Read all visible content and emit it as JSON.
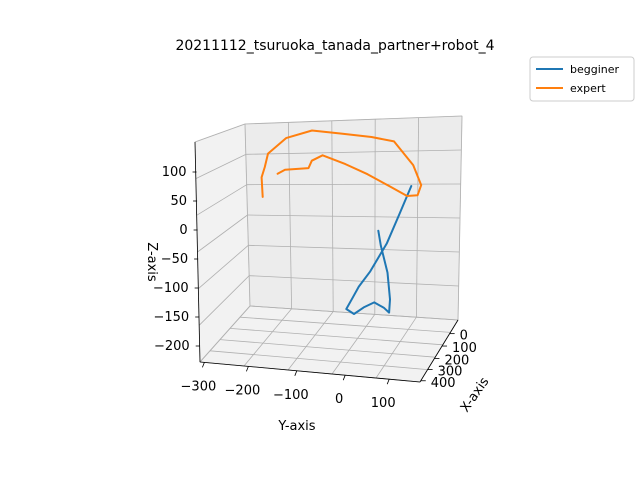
{
  "chart_data": {
    "type": "line",
    "projection": "3d",
    "title": "20211112_tsuruoka_tanada_partner+robot_4",
    "xlabel": "X-axis",
    "ylabel": "Y-axis",
    "zlabel": "Z-axis",
    "x_ticks": [
      "0",
      "100",
      "200",
      "300",
      "400"
    ],
    "y_ticks": [
      "−300",
      "−200",
      "−100",
      "0",
      "100"
    ],
    "z_ticks": [
      "100",
      "50",
      "0",
      "−50",
      "−100",
      "−150",
      "−200"
    ],
    "grid": true,
    "legend": "top-right outside",
    "series": [
      {
        "name": "begginer",
        "color": "#1f77b4",
        "points": [
          [
            0,
            50,
            -20
          ],
          [
            40,
            30,
            -60
          ],
          [
            80,
            10,
            -100
          ],
          [
            120,
            -20,
            -140
          ],
          [
            150,
            -40,
            -160
          ],
          [
            170,
            -50,
            -175
          ],
          [
            190,
            -60,
            -190
          ],
          [
            200,
            -40,
            -195
          ],
          [
            190,
            -20,
            -185
          ],
          [
            170,
            0,
            -180
          ],
          [
            160,
            20,
            -190
          ],
          [
            150,
            30,
            -200
          ],
          [
            140,
            30,
            -180
          ],
          [
            120,
            20,
            -140
          ],
          [
            100,
            0,
            -100
          ],
          [
            80,
            -10,
            -80
          ]
        ]
      },
      {
        "name": "expert",
        "color": "#ff7f0e",
        "points": [
          [
            0,
            -300,
            -55
          ],
          [
            10,
            -300,
            -20
          ],
          [
            20,
            -290,
            0
          ],
          [
            30,
            -280,
            25
          ],
          [
            60,
            -230,
            60
          ],
          [
            100,
            -160,
            85
          ],
          [
            150,
            -80,
            95
          ],
          [
            200,
            0,
            105
          ],
          [
            240,
            60,
            110
          ],
          [
            270,
            110,
            80
          ],
          [
            280,
            130,
            50
          ],
          [
            270,
            120,
            30
          ],
          [
            240,
            90,
            20
          ],
          [
            200,
            40,
            25
          ],
          [
            150,
            -20,
            30
          ],
          [
            110,
            -80,
            35
          ],
          [
            80,
            -140,
            40
          ],
          [
            60,
            -170,
            25
          ],
          [
            50,
            -180,
            10
          ],
          [
            30,
            -240,
            0
          ],
          [
            20,
            -260,
            -10
          ]
        ]
      }
    ]
  }
}
